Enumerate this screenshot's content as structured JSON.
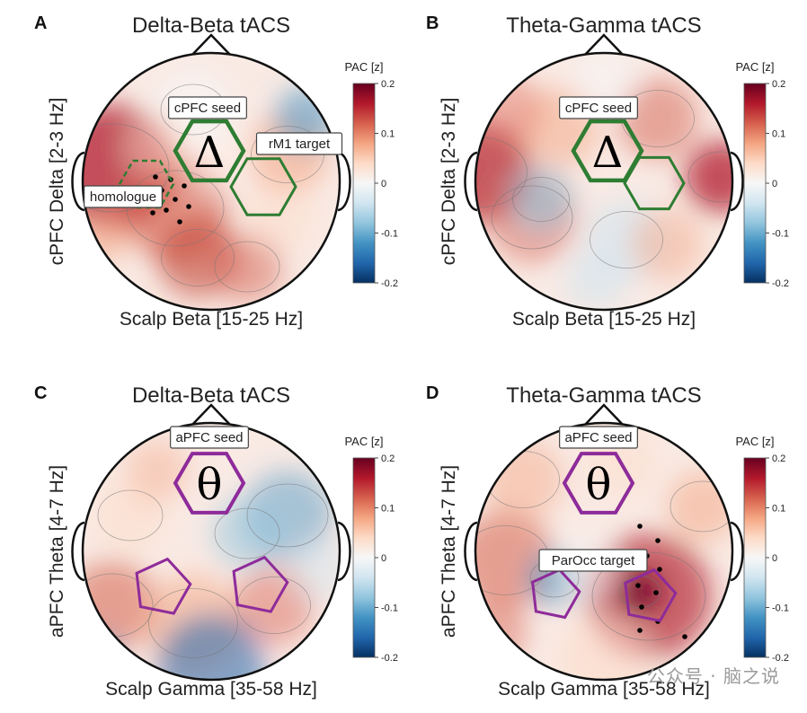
{
  "figure": {
    "watermark": "公众号 · 脑之说",
    "colorbar": {
      "title": "PAC [z]",
      "ticks": [
        "0.2",
        "0.1",
        "0",
        "-0.1",
        "-0.2"
      ],
      "colormap": [
        "#67001f",
        "#b2182b",
        "#d6604d",
        "#f4a582",
        "#fddbc7",
        "#f7f7f7",
        "#d1e5f0",
        "#92c5de",
        "#4393c3",
        "#2166ac",
        "#053061"
      ]
    },
    "outline_colors": {
      "green": "#2e7d32",
      "purple": "#8e2b9a"
    }
  },
  "chart_data": [
    {
      "type": "heatmap",
      "panel": "A",
      "title": "Delta-Beta tACS",
      "ylabel": "cPFC Delta [2-3 Hz]",
      "xlabel": "Scalp Beta [15-25 Hz]",
      "clim": [
        -0.2,
        0.2
      ],
      "symbol": "Δ",
      "annotations": [
        "cPFC seed",
        "rM1 target",
        "homologue"
      ]
    },
    {
      "type": "heatmap",
      "panel": "B",
      "title": "Theta-Gamma tACS",
      "ylabel": "cPFC Delta [2-3 Hz]",
      "xlabel": "Scalp Beta [15-25 Hz]",
      "clim": [
        -0.2,
        0.2
      ],
      "symbol": "Δ",
      "annotations": [
        "cPFC seed"
      ]
    },
    {
      "type": "heatmap",
      "panel": "C",
      "title": "Delta-Beta tACS",
      "ylabel": "aPFC Theta [4-7 Hz]",
      "xlabel": "Scalp Gamma [35-58 Hz]",
      "clim": [
        -0.2,
        0.2
      ],
      "symbol": "θ",
      "annotations": [
        "aPFC seed"
      ]
    },
    {
      "type": "heatmap",
      "panel": "D",
      "title": "Theta-Gamma tACS",
      "ylabel": "aPFC Theta [4-7 Hz]",
      "xlabel": "Scalp Gamma [35-58 Hz]",
      "clim": [
        -0.2,
        0.2
      ],
      "symbol": "θ",
      "annotations": [
        "aPFC seed",
        "ParOcc target"
      ]
    }
  ]
}
